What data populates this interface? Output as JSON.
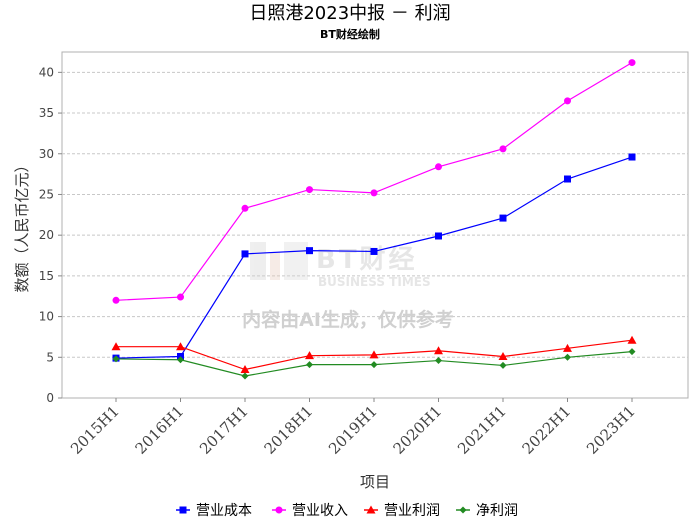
{
  "chart_data": {
    "type": "line",
    "title": "日照港2023中报 － 利润",
    "subtitle": "BT财经绘制",
    "xlabel": "项目",
    "ylabel": "数额（人民币亿元）",
    "categories": [
      "2015H1",
      "2016H1",
      "2017H1",
      "2018H1",
      "2019H1",
      "2020H1",
      "2021H1",
      "2022H1",
      "2023H1"
    ],
    "ylim": [
      0,
      42.5
    ],
    "yticks": [
      0,
      5,
      10,
      15,
      20,
      25,
      30,
      35,
      40
    ],
    "grid": true,
    "legend_position": "bottom",
    "series": [
      {
        "name": "营业成本",
        "color": "#0000ff",
        "marker": "square",
        "values": [
          4.9,
          5.1,
          17.7,
          18.1,
          18.0,
          19.9,
          22.1,
          26.9,
          29.6
        ]
      },
      {
        "name": "营业收入",
        "color": "#ff00ff",
        "marker": "circle",
        "values": [
          12.0,
          12.4,
          23.3,
          25.6,
          25.2,
          28.4,
          30.6,
          36.5,
          41.2
        ]
      },
      {
        "name": "营业利润",
        "color": "#ff0000",
        "marker": "triangle",
        "values": [
          6.3,
          6.3,
          3.5,
          5.2,
          5.3,
          5.8,
          5.1,
          6.1,
          7.1
        ]
      },
      {
        "name": "净利润",
        "color": "#228b22",
        "marker": "diamond",
        "values": [
          4.8,
          4.7,
          2.7,
          4.1,
          4.1,
          4.6,
          4.0,
          5.0,
          5.7
        ]
      }
    ],
    "watermark": {
      "brand": "BT财经",
      "brand_en": "BUSINESS TIMES",
      "notice": "内容由AI生成，仅供参考"
    }
  }
}
